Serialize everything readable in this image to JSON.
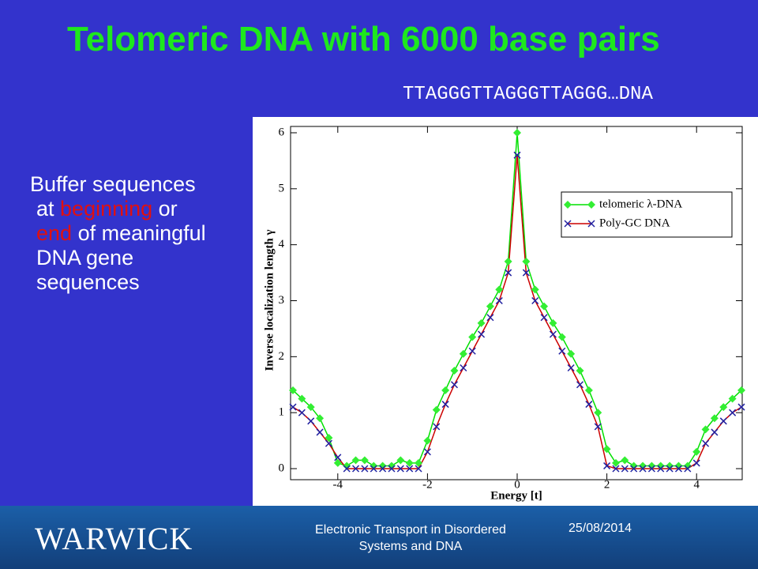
{
  "title": "Telomeric DNA with 6000 base pairs",
  "sequence": "TTAGGGTTAGGGTTAGGG…DNA",
  "body": [
    "Buffer sequences at ",
    "beginning",
    " or ",
    "end",
    " of meaningful DNA gene sequences"
  ],
  "footer": {
    "logo": "WARWICK",
    "course": "Electronic Transport in Disordered Systems and DNA",
    "date": "25/08/2014"
  },
  "chart_data": {
    "type": "line",
    "x_label": "Energy [t]",
    "y_label": "Inverse localization length γ",
    "x": [
      -5,
      -4.8,
      -4.6,
      -4.4,
      -4.2,
      -4,
      -3.8,
      -3.6,
      -3.4,
      -3.2,
      -3,
      -2.8,
      -2.6,
      -2.4,
      -2.2,
      -2,
      -1.8,
      -1.6,
      -1.4,
      -1.2,
      -1,
      -0.8,
      -0.6,
      -0.4,
      -0.2,
      0,
      0.2,
      0.4,
      0.6,
      0.8,
      1,
      1.2,
      1.4,
      1.6,
      1.8,
      2,
      2.2,
      2.4,
      2.6,
      2.8,
      3,
      3.2,
      3.4,
      3.6,
      3.8,
      4,
      4.2,
      4.4,
      4.6,
      4.8,
      5
    ],
    "series": [
      {
        "name": "telomeric λ-DNA",
        "color": "#00e000",
        "marker_color": "#33ee33",
        "marker": "diamond",
        "values": [
          1.4,
          1.25,
          1.1,
          0.9,
          0.55,
          0.1,
          0.05,
          0.15,
          0.15,
          0.05,
          0.05,
          0.05,
          0.15,
          0.1,
          0.1,
          0.5,
          1.05,
          1.4,
          1.75,
          2.05,
          2.35,
          2.6,
          2.9,
          3.2,
          3.7,
          6,
          3.7,
          3.2,
          2.9,
          2.6,
          2.35,
          2.05,
          1.75,
          1.4,
          1,
          0.35,
          0.1,
          0.15,
          0.05,
          0.05,
          0.05,
          0.05,
          0.05,
          0.05,
          0.05,
          0.3,
          0.7,
          0.9,
          1.1,
          1.25,
          1.4
        ]
      },
      {
        "name": "Poly-GC DNA",
        "color": "#cc0000",
        "marker_color": "#2020a0",
        "marker": "cross",
        "values": [
          1.1,
          1,
          0.85,
          0.65,
          0.45,
          0.2,
          0,
          0,
          0,
          0,
          0,
          0,
          0,
          0,
          0,
          0.3,
          0.75,
          1.15,
          1.5,
          1.8,
          2.1,
          2.4,
          2.7,
          3,
          3.5,
          5.6,
          3.5,
          3,
          2.7,
          2.4,
          2.1,
          1.8,
          1.5,
          1.15,
          0.75,
          0.05,
          0,
          0,
          0,
          0,
          0,
          0,
          0,
          0,
          0,
          0.1,
          0.45,
          0.65,
          0.85,
          1,
          1.1
        ]
      }
    ],
    "xlim": [
      -5,
      5
    ],
    "xticks": [
      -4,
      -2,
      0,
      2,
      4
    ],
    "ylim": [
      0,
      6
    ],
    "yticks": [
      0,
      1,
      2,
      3,
      4,
      5,
      6
    ],
    "legend": "upper right",
    "grid": false
  }
}
